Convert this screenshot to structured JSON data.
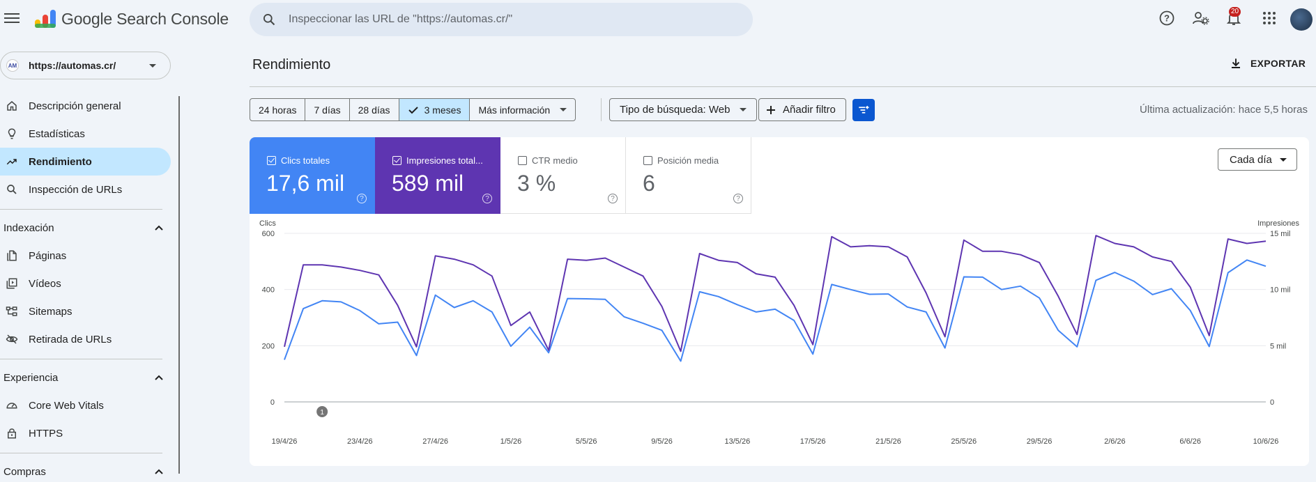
{
  "app": {
    "title": "Google Search Console",
    "search_placeholder": "Inspeccionar las URL de \"https://automas.cr/\"",
    "notifications_count": "20"
  },
  "sidebar": {
    "property": "https://automas.cr/",
    "property_initials": "AM",
    "items": [
      {
        "label": "Descripción general",
        "icon": "home-icon"
      },
      {
        "label": "Estadísticas",
        "icon": "lightbulb-icon"
      },
      {
        "label": "Rendimiento",
        "icon": "trending-up-icon",
        "active": true
      },
      {
        "label": "Inspección de URLs",
        "icon": "search-icon"
      }
    ],
    "sections": [
      {
        "title": "Indexación",
        "items": [
          {
            "label": "Páginas",
            "icon": "pages-icon"
          },
          {
            "label": "Vídeos",
            "icon": "video-icon"
          },
          {
            "label": "Sitemaps",
            "icon": "sitemap-icon"
          },
          {
            "label": "Retirada de URLs",
            "icon": "eye-off-icon"
          }
        ]
      },
      {
        "title": "Experiencia",
        "items": [
          {
            "label": "Core Web Vitals",
            "icon": "gauge-icon"
          },
          {
            "label": "HTTPS",
            "icon": "lock-icon"
          }
        ]
      },
      {
        "title": "Compras",
        "items": []
      }
    ]
  },
  "main": {
    "title": "Rendimiento",
    "export_label": "EXPORTAR",
    "ranges": [
      "24 horas",
      "7 días",
      "28 días",
      "3 meses",
      "Más información"
    ],
    "selected_range": "3 meses",
    "search_type": "Tipo de búsqueda: Web",
    "add_filter": "Añadir filtro",
    "last_update": "Última actualización: hace 5,5 horas",
    "granularity": "Cada día"
  },
  "metrics": [
    {
      "label": "Clics totales",
      "value": "17,6 mil",
      "checked": true,
      "color": "#4285f4"
    },
    {
      "label": "Impresiones total...",
      "value": "589 mil",
      "checked": true,
      "color": "#5e35b1"
    },
    {
      "label": "CTR medio",
      "value": "3 %",
      "checked": false
    },
    {
      "label": "Posición media",
      "value": "6",
      "checked": false
    }
  ],
  "chart_data": {
    "type": "line",
    "left_axis_label": "Clics",
    "right_axis_label": "Impresiones",
    "left_ticks": [
      "600",
      "400",
      "200",
      "0"
    ],
    "right_ticks": [
      "15 mil",
      "10 mil",
      "5 mil",
      "0"
    ],
    "ylim_left": [
      0,
      600
    ],
    "ylim_right": [
      0,
      15000
    ],
    "x_tick_labels": [
      "19/4/26",
      "23/4/26",
      "27/4/26",
      "1/5/26",
      "5/5/26",
      "9/5/26",
      "13/5/26",
      "17/5/26",
      "21/5/26",
      "25/5/26",
      "29/5/26",
      "2/6/26",
      "6/6/26",
      "10/6/26"
    ],
    "annotation": {
      "label": "1",
      "date": "21/4/26"
    },
    "series": [
      {
        "name": "Clics",
        "axis": "left",
        "color": "#4285f4",
        "values": [
          150,
          332,
          360,
          356,
          325,
          278,
          284,
          165,
          380,
          336,
          360,
          320,
          198,
          266,
          175,
          368,
          367,
          365,
          303,
          280,
          255,
          145,
          392,
          375,
          346,
          320,
          330,
          290,
          170,
          418,
          400,
          383,
          384,
          338,
          320,
          192,
          445,
          444,
          400,
          412,
          370,
          255,
          196,
          433,
          461,
          430,
          382,
          403,
          325,
          197,
          460,
          505,
          483
        ]
      },
      {
        "name": "Impresiones",
        "axis": "right",
        "color": "#5e35b1",
        "values": [
          4900,
          12200,
          12200,
          12000,
          11700,
          11300,
          8600,
          4900,
          13000,
          12700,
          12200,
          11200,
          6800,
          8000,
          4600,
          12700,
          12600,
          12800,
          12000,
          11200,
          8500,
          4500,
          13200,
          12600,
          12400,
          11400,
          11100,
          8600,
          5100,
          14700,
          13800,
          13900,
          13800,
          12900,
          9700,
          5800,
          14400,
          13400,
          13400,
          13100,
          12400,
          9400,
          6000,
          14800,
          14100,
          13800,
          12900,
          12500,
          10200,
          5900,
          14500,
          14100,
          14300
        ]
      }
    ]
  }
}
